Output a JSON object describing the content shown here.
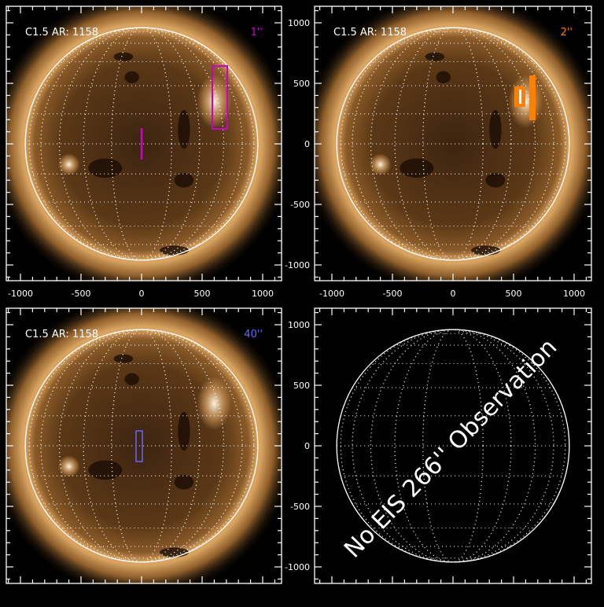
{
  "axes": {
    "x_ticks": [
      "-1000",
      "-500",
      "0",
      "500",
      "1000"
    ],
    "y_ticks": [
      "1000",
      "500",
      "0",
      "-500",
      "-1000"
    ],
    "x_tick_values": [
      -1000,
      -500,
      0,
      500,
      1000
    ],
    "y_tick_values": [
      1000,
      500,
      0,
      -500,
      -1000
    ],
    "range": [
      -1100,
      1150
    ]
  },
  "panels": [
    {
      "label": "C1.5 AR: 1158",
      "slit": "1''",
      "slit_color": "#cc00cc",
      "has_image": true
    },
    {
      "label": "C1.5 AR: 1158",
      "slit": "2''",
      "slit_color": "#ff8000",
      "has_image": true
    },
    {
      "label": "C1.5 AR: 1158",
      "slit": "40''",
      "slit_color": "#6666ff",
      "has_image": true
    },
    {
      "label": "",
      "slit": "",
      "has_image": false,
      "message": "No EIS 266'' Observation"
    }
  ],
  "colors": {
    "sun_core": "#4a2e12",
    "sun_limb": "#c8914a",
    "corona": "#8a5a25",
    "limb_line": "#ffffff"
  }
}
